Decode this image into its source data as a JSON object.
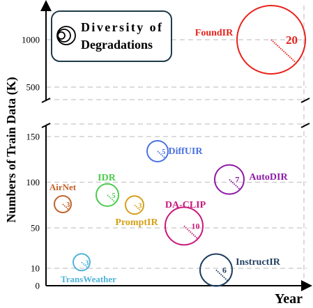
{
  "chart_data": {
    "type": "scatter",
    "subtype": "bubble",
    "xlabel": "Year",
    "ylabel": "Numbers of Train Data (K)",
    "y_axis_break": true,
    "y_ticks_lower": [
      0,
      10,
      50,
      100,
      150
    ],
    "y_ticks_upper": [
      500,
      1000
    ],
    "grid": "horizontal-dashed",
    "legend": {
      "position": "top-left",
      "text_line1": "Diversity    of",
      "text_line2": "Degradations"
    },
    "size_meaning": "number of degradation types",
    "points": [
      {
        "name": "AirNet",
        "y": 76,
        "count": "3",
        "color": "#c0622a"
      },
      {
        "name": "TransWeather",
        "y": 16,
        "count": "3",
        "color": "#4fb3d9"
      },
      {
        "name": "IDR",
        "y": 86,
        "count": "5",
        "color": "#4ccc4c"
      },
      {
        "name": "PromptIR",
        "y": 75,
        "count": "3",
        "color": "#d4a017"
      },
      {
        "name": "DiffUIR",
        "y": 134,
        "count": "5",
        "color": "#4a72e0"
      },
      {
        "name": "DA-CLIP",
        "y": 52,
        "count": "10",
        "color": "#c8187a"
      },
      {
        "name": "AutoDIR",
        "y": 103,
        "count": "7",
        "color": "#8e1aa6"
      },
      {
        "name": "InstructIR",
        "y": 9,
        "count": "6",
        "color": "#1f3f5f"
      },
      {
        "name": "FoundIR",
        "y": 1000,
        "count": "20",
        "color": "#e8221b"
      }
    ]
  }
}
